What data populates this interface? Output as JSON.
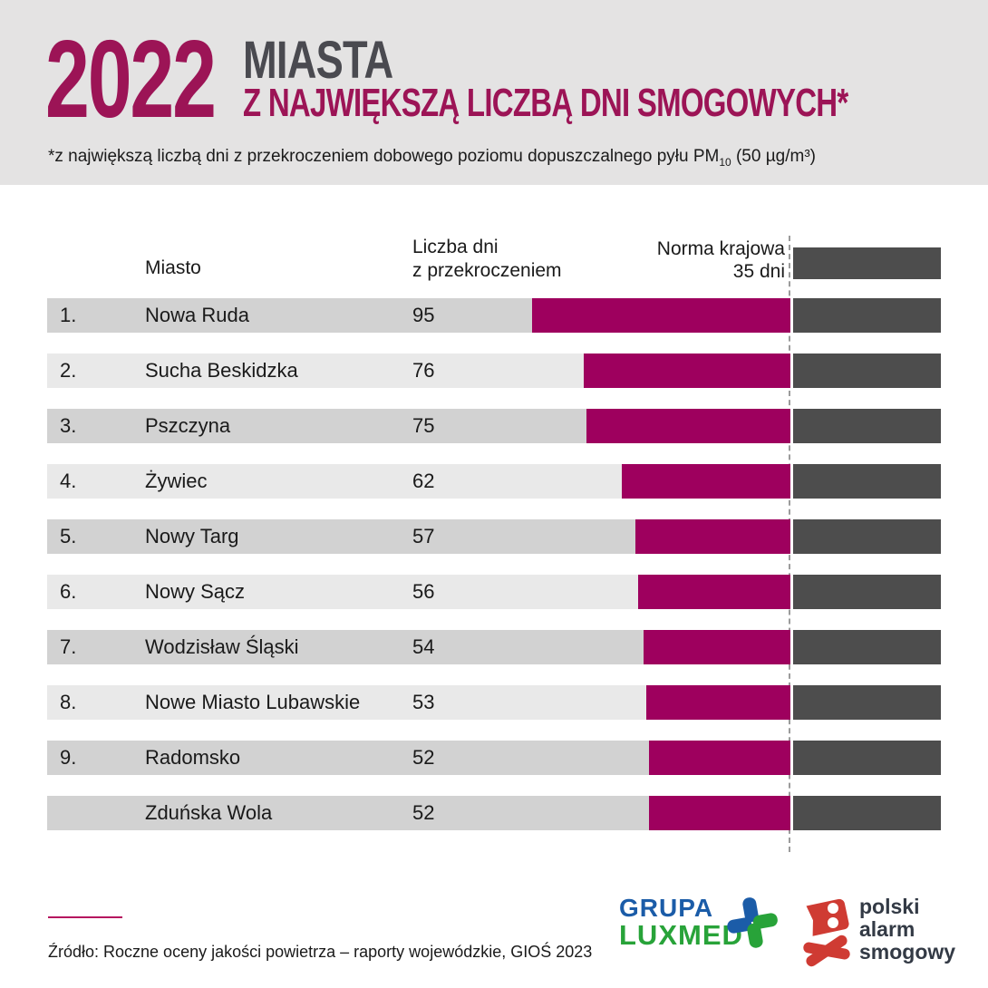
{
  "header": {
    "year": "2022",
    "title_line1": "MIASTA",
    "title_line2": "Z NAJWIĘKSZĄ LICZBĄ DNI SMOGOWYCH*",
    "subtitle_prefix": "*z największą liczbą dni z przekroczeniem dobowego poziomu dopuszczalnego pyłu PM",
    "subtitle_sub": "10",
    "subtitle_suffix": " (50 µg/m³)"
  },
  "table": {
    "col_city": "Miasto",
    "col_days_line1": "Liczba dni",
    "col_days_line2": "z przekroczeniem",
    "col_norm_line1": "Norma krajowa",
    "col_norm_line2": "35 dni"
  },
  "chart_data": {
    "type": "bar",
    "title": "2022 Miasta z największą liczbą dni smogowych",
    "xlabel": "Liczba dni z przekroczeniem",
    "norm_value": 35,
    "norm_label": "Norma krajowa 35 dni",
    "categories": [
      "Nowa Ruda",
      "Sucha Beskidzka",
      "Pszczyna",
      "Żywiec",
      "Nowy Targ",
      "Nowy Sącz",
      "Wodzisław Śląski",
      "Nowe Miasto Lubawskie",
      "Radomsko",
      "Zduńska Wola"
    ],
    "values": [
      95,
      76,
      75,
      62,
      57,
      56,
      54,
      53,
      52,
      52
    ],
    "ranks": [
      "1.",
      "2.",
      "3.",
      "4.",
      "5.",
      "6.",
      "7.",
      "8.",
      "9.",
      ""
    ],
    "row_shade": [
      "dark",
      "light",
      "dark",
      "light",
      "dark",
      "light",
      "dark",
      "light",
      "dark",
      "dark"
    ],
    "bar_color": "#9e005e",
    "norm_segment_color": "#4d4d4d",
    "row_shade_colors": {
      "dark": "#d2d2d2",
      "light": "#e9e9e9"
    },
    "legend_position": "top-right",
    "grid": false
  },
  "footer": {
    "source": "Źródło: Roczne oceny jakości powietrza – raporty wojewódzkie, GIOŚ 2023",
    "luxmed_line1": "GRUPA",
    "luxmed_line2": "LUXMED",
    "pas_line1": "polski",
    "pas_line2": "alarm",
    "pas_line3": "smogowy"
  },
  "colors": {
    "accent_magenta": "#9c1456",
    "bar_magenta": "#9e005e",
    "dark_gray": "#4d4d4d",
    "header_band": "#e4e3e3",
    "luxmed_blue": "#1b5ca8",
    "luxmed_green": "#28a339",
    "pas_red": "#cf3b33"
  }
}
